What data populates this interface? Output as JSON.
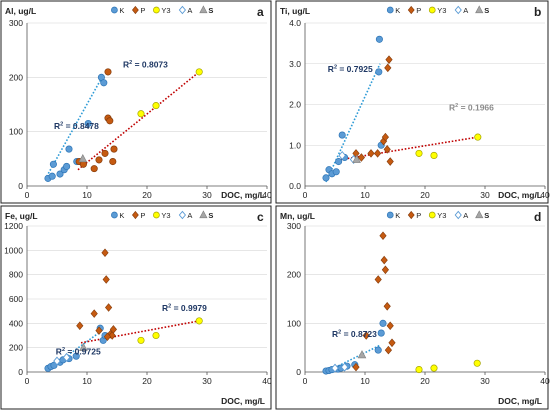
{
  "colors": {
    "K": "#5b9bd5",
    "P": "#c55a11",
    "Y3": "#ffff00",
    "A": "#9dc3e6",
    "S": "#a6a6a6",
    "edgeK": "#2e75b6",
    "edgeP": "#843c0c",
    "edgeY3": "#a6a600",
    "edgeA": "#5b9bd5",
    "edgeS": "#7f7f7f",
    "trendK": "#2e9bd6",
    "trendP": "#c00000"
  },
  "chart_data": [
    {
      "panel": "a",
      "type": "scatter",
      "ylabel": "Al, ug/L",
      "xlabel": "DOC, mg/L",
      "xlim": [
        0,
        40
      ],
      "ylim": [
        0,
        300
      ],
      "xticks": [
        "0",
        "10",
        "20",
        "30",
        "40"
      ],
      "yticks": [
        "0",
        "100",
        "200",
        "300"
      ],
      "grid": "horizontal",
      "legend": {
        "position": "top",
        "entries": [
          {
            "key": "K",
            "label": "K",
            "marker": "circle"
          },
          {
            "key": "P",
            "label": "P",
            "marker": "diamond"
          },
          {
            "key": "Y3",
            "label": "Y3",
            "marker": "circle"
          },
          {
            "key": "A",
            "label": "A",
            "marker": "diamond-open"
          },
          {
            "key": "S",
            "label": "S",
            "marker": "triangle",
            "bold": true
          }
        ]
      },
      "series": [
        {
          "key": "K",
          "marker": "circle",
          "points": [
            [
              3.5,
              14
            ],
            [
              4.2,
              18
            ],
            [
              4.4,
              40
            ],
            [
              5.5,
              22
            ],
            [
              6.2,
              30
            ],
            [
              6.6,
              36
            ],
            [
              7,
              68
            ],
            [
              8.3,
              45
            ],
            [
              10.2,
              115
            ],
            [
              12.4,
              200
            ],
            [
              12.8,
              190
            ]
          ]
        },
        {
          "key": "P",
          "marker": "circle",
          "points": [
            [
              8.7,
              45
            ],
            [
              9.4,
              40
            ],
            [
              11.2,
              32
            ],
            [
              12,
              48
            ],
            [
              13,
              60
            ],
            [
              13.5,
              125
            ],
            [
              13.8,
              120
            ],
            [
              14.3,
              45
            ],
            [
              14.5,
              68
            ],
            [
              13.5,
              210
            ]
          ]
        },
        {
          "key": "Y3",
          "marker": "circle",
          "points": [
            [
              19,
              133
            ],
            [
              21.5,
              148
            ],
            [
              28.7,
              210
            ]
          ]
        },
        {
          "key": "A",
          "marker": "diamond-open",
          "points": []
        },
        {
          "key": "S",
          "marker": "triangle",
          "points": [
            [
              9.3,
              50
            ]
          ]
        }
      ],
      "trendlines": [
        {
          "key": "K",
          "from": [
            3,
            12
          ],
          "to": [
            12.5,
            200
          ]
        },
        {
          "key": "P",
          "from": [
            8.5,
            30
          ],
          "to": [
            28.7,
            210
          ]
        }
      ],
      "annotations": [
        {
          "base": "R",
          "sup": "2",
          "text": " = 0.8478",
          "x": 4.5,
          "y": 105,
          "color": "#1f3864"
        },
        {
          "base": "R",
          "sup": "2",
          "text": " = 0.8073",
          "x": 16,
          "y": 218,
          "color": "#1f3864"
        }
      ]
    },
    {
      "panel": "b",
      "type": "scatter",
      "ylabel": "Ti, ug/L",
      "xlabel": "DOC, mg/L",
      "xlim": [
        0,
        40
      ],
      "ylim": [
        0,
        4
      ],
      "xticks": [
        "0",
        "10",
        "20",
        "30",
        "40"
      ],
      "yticks": [
        "0.0",
        "1.0",
        "2.0",
        "3.0",
        "4.0"
      ],
      "grid": "horizontal",
      "legend": {
        "position": "top",
        "entries": [
          {
            "key": "K",
            "label": "K",
            "marker": "circle"
          },
          {
            "key": "P",
            "label": "P",
            "marker": "diamond"
          },
          {
            "key": "Y3",
            "label": "Y3",
            "marker": "circle"
          },
          {
            "key": "A",
            "label": "A",
            "marker": "diamond-open"
          },
          {
            "key": "S",
            "label": "S",
            "marker": "triangle",
            "bold": true
          }
        ]
      },
      "series": [
        {
          "key": "K",
          "marker": "circle",
          "points": [
            [
              3.5,
              0.2
            ],
            [
              4,
              0.4
            ],
            [
              4.5,
              0.3
            ],
            [
              5.2,
              0.35
            ],
            [
              5.6,
              0.6
            ],
            [
              6.2,
              1.25
            ],
            [
              6.6,
              0.7
            ],
            [
              12.3,
              2.8
            ],
            [
              12.4,
              3.6
            ],
            [
              12.7,
              1.0
            ]
          ]
        },
        {
          "key": "P",
          "marker": "diamond",
          "points": [
            [
              8.5,
              0.8
            ],
            [
              9.4,
              0.7
            ],
            [
              11,
              0.8
            ],
            [
              12.1,
              0.8
            ],
            [
              13.1,
              1.1
            ],
            [
              13.4,
              1.2
            ],
            [
              13.7,
              0.9
            ],
            [
              14.2,
              0.6
            ],
            [
              13.8,
              2.9
            ],
            [
              14,
              3.1
            ]
          ]
        },
        {
          "key": "Y3",
          "marker": "circle",
          "points": [
            [
              19,
              0.8
            ],
            [
              21.5,
              0.75
            ],
            [
              28.8,
              1.2
            ]
          ]
        },
        {
          "key": "A",
          "marker": "diamond-open",
          "points": [
            [
              6.2,
              0.75
            ],
            [
              8.1,
              0.65
            ]
          ]
        },
        {
          "key": "S",
          "marker": "triangle",
          "points": [
            [
              8.6,
              0.65
            ]
          ]
        }
      ],
      "trendlines": [
        {
          "key": "K",
          "from": [
            3.5,
            0.1
          ],
          "to": [
            12.5,
            3.0
          ]
        },
        {
          "key": "P",
          "from": [
            6,
            0.65
          ],
          "to": [
            28.8,
            1.2
          ]
        }
      ],
      "annotations": [
        {
          "base": "R",
          "sup": "2",
          "text": " = 0.7925",
          "x": 3.8,
          "y": 2.8,
          "color": "#1f3864"
        },
        {
          "base": "R",
          "sup": "2",
          "text": " = 0.1966",
          "x": 24,
          "y": 1.85,
          "color": "#8c8c8c"
        }
      ]
    },
    {
      "panel": "c",
      "type": "scatter",
      "ylabel": "Fe, ug/L",
      "xlabel": "DOC, mg/L",
      "xlim": [
        0,
        40
      ],
      "ylim": [
        0,
        1200
      ],
      "xticks": [
        "0",
        "10",
        "20",
        "30",
        "40"
      ],
      "yticks": [
        "0",
        "200",
        "400",
        "600",
        "800",
        "1000",
        "1200"
      ],
      "grid": "horizontal",
      "legend": {
        "position": "top",
        "entries": [
          {
            "key": "K",
            "label": "K",
            "marker": "circle"
          },
          {
            "key": "P",
            "label": "P",
            "marker": "diamond"
          },
          {
            "key": "Y3",
            "label": "Y3",
            "marker": "circle"
          },
          {
            "key": "A",
            "label": "A",
            "marker": "diamond-open"
          },
          {
            "key": "S",
            "label": "S",
            "marker": "triangle",
            "bold": true
          }
        ]
      },
      "series": [
        {
          "key": "K",
          "marker": "circle",
          "points": [
            [
              3.5,
              30
            ],
            [
              4,
              45
            ],
            [
              4.5,
              55
            ],
            [
              5.5,
              80
            ],
            [
              6,
              100
            ],
            [
              7,
              110
            ],
            [
              8.2,
              130
            ],
            [
              12.2,
              360
            ],
            [
              12.7,
              260
            ],
            [
              13,
              300
            ]
          ]
        },
        {
          "key": "P",
          "marker": "diamond",
          "points": [
            [
              8.8,
              380
            ],
            [
              11.2,
              480
            ],
            [
              12,
              340
            ],
            [
              13,
              980
            ],
            [
              13.2,
              760
            ],
            [
              13.6,
              530
            ],
            [
              13.9,
              310
            ],
            [
              14.2,
              300
            ],
            [
              14.4,
              350
            ],
            [
              13.4,
              290
            ]
          ]
        },
        {
          "key": "Y3",
          "marker": "circle",
          "points": [
            [
              19,
              260
            ],
            [
              21.5,
              300
            ],
            [
              28.7,
              420
            ]
          ]
        },
        {
          "key": "A",
          "marker": "diamond-open",
          "points": [
            [
              5,
              90
            ],
            [
              6.6,
              120
            ]
          ]
        },
        {
          "key": "S",
          "marker": "triangle",
          "points": [
            [
              9.4,
              200
            ]
          ]
        }
      ],
      "trendlines": [
        {
          "key": "K",
          "from": [
            3.5,
            20
          ],
          "to": [
            12.5,
            340
          ]
        },
        {
          "key": "P",
          "from": [
            9,
            240
          ],
          "to": [
            28.7,
            420
          ]
        }
      ],
      "annotations": [
        {
          "base": "R",
          "sup": "2",
          "text": " = 0.9979",
          "x": 22.5,
          "y": 500,
          "color": "#1f3864"
        },
        {
          "base": "R",
          "sup": "2",
          "text": " = 0.9725",
          "x": 4.8,
          "y": 145,
          "color": "#1f3864"
        }
      ]
    },
    {
      "panel": "d",
      "type": "scatter",
      "ylabel": "Mn, ug/L",
      "xlabel": "DOC, mg/L",
      "xlim": [
        0,
        40
      ],
      "ylim": [
        0,
        300
      ],
      "xticks": [
        "0",
        "10",
        "20",
        "30",
        "40"
      ],
      "yticks": [
        "0",
        "100",
        "200",
        "300"
      ],
      "grid": "horizontal",
      "legend": {
        "position": "top",
        "entries": [
          {
            "key": "K",
            "label": "K",
            "marker": "circle"
          },
          {
            "key": "P",
            "label": "P",
            "marker": "diamond"
          },
          {
            "key": "Y3",
            "label": "Y3",
            "marker": "circle"
          },
          {
            "key": "A",
            "label": "A",
            "marker": "diamond-open"
          },
          {
            "key": "S",
            "label": "S",
            "marker": "triangle",
            "bold": true
          }
        ]
      },
      "series": [
        {
          "key": "K",
          "marker": "circle",
          "points": [
            [
              3.5,
              2
            ],
            [
              4,
              3
            ],
            [
              4.5,
              5
            ],
            [
              5.5,
              6
            ],
            [
              6,
              8
            ],
            [
              7,
              12
            ],
            [
              8.3,
              15
            ],
            [
              12.2,
              45
            ],
            [
              12.7,
              80
            ],
            [
              13,
              100
            ]
          ]
        },
        {
          "key": "P",
          "marker": "diamond",
          "points": [
            [
              8.5,
              10
            ],
            [
              10.2,
              75
            ],
            [
              12.2,
              190
            ],
            [
              13,
              280
            ],
            [
              13.2,
              230
            ],
            [
              13.4,
              210
            ],
            [
              13.7,
              135
            ],
            [
              14.2,
              95
            ],
            [
              14.5,
              60
            ],
            [
              13.9,
              45
            ]
          ]
        },
        {
          "key": "Y3",
          "marker": "circle",
          "points": [
            [
              19,
              5
            ],
            [
              21.5,
              8
            ],
            [
              28.7,
              18
            ]
          ]
        },
        {
          "key": "A",
          "marker": "diamond-open",
          "points": [
            [
              5,
              8
            ],
            [
              6.6,
              10
            ]
          ]
        },
        {
          "key": "S",
          "marker": "triangle",
          "points": [
            [
              9.5,
              35
            ]
          ]
        }
      ],
      "trendlines": [
        {
          "key": "K",
          "from": [
            3.5,
            0
          ],
          "to": [
            12.5,
            55
          ]
        }
      ],
      "annotations": [
        {
          "base": "R",
          "sup": "2",
          "text": " = 0.8723",
          "x": 4.5,
          "y": 72,
          "color": "#1f3864"
        }
      ]
    }
  ]
}
